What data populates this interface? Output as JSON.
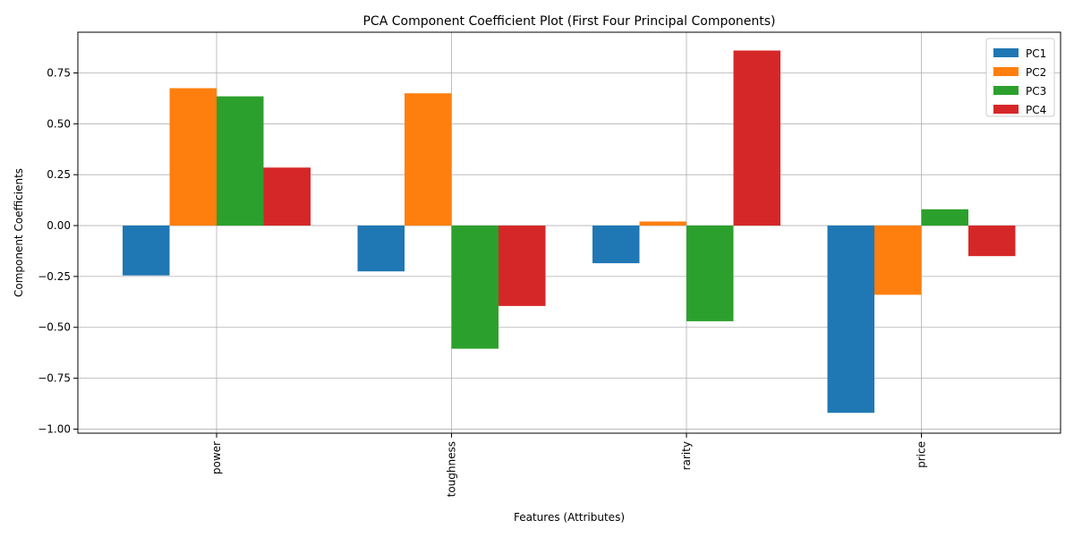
{
  "chart_data": {
    "type": "bar",
    "title": "PCA Component Coefficient Plot (First Four Principal Components)",
    "xlabel": "Features (Attributes)",
    "ylabel": "Component Coefficients",
    "categories": [
      "power",
      "toughness",
      "rarity",
      "price"
    ],
    "series": [
      {
        "name": "PC1",
        "color": "#1f77b4",
        "values": [
          -0.245,
          -0.225,
          -0.185,
          -0.92
        ]
      },
      {
        "name": "PC2",
        "color": "#ff7f0e",
        "values": [
          0.675,
          0.65,
          0.02,
          -0.34
        ]
      },
      {
        "name": "PC3",
        "color": "#2ca02c",
        "values": [
          0.635,
          -0.605,
          -0.47,
          0.08
        ]
      },
      {
        "name": "PC4",
        "color": "#d62728",
        "values": [
          0.285,
          -0.395,
          0.86,
          -0.15
        ]
      }
    ],
    "ylim": [
      -1.02,
      0.95
    ],
    "yticks": [
      -1.0,
      -0.75,
      -0.5,
      -0.25,
      0.0,
      0.25,
      0.5,
      0.75
    ],
    "ytick_labels": [
      "−1.00",
      "−0.75",
      "−0.50",
      "−0.25",
      "0.00",
      "0.25",
      "0.50",
      "0.75"
    ],
    "grid": true,
    "legend_position": "top-right"
  }
}
